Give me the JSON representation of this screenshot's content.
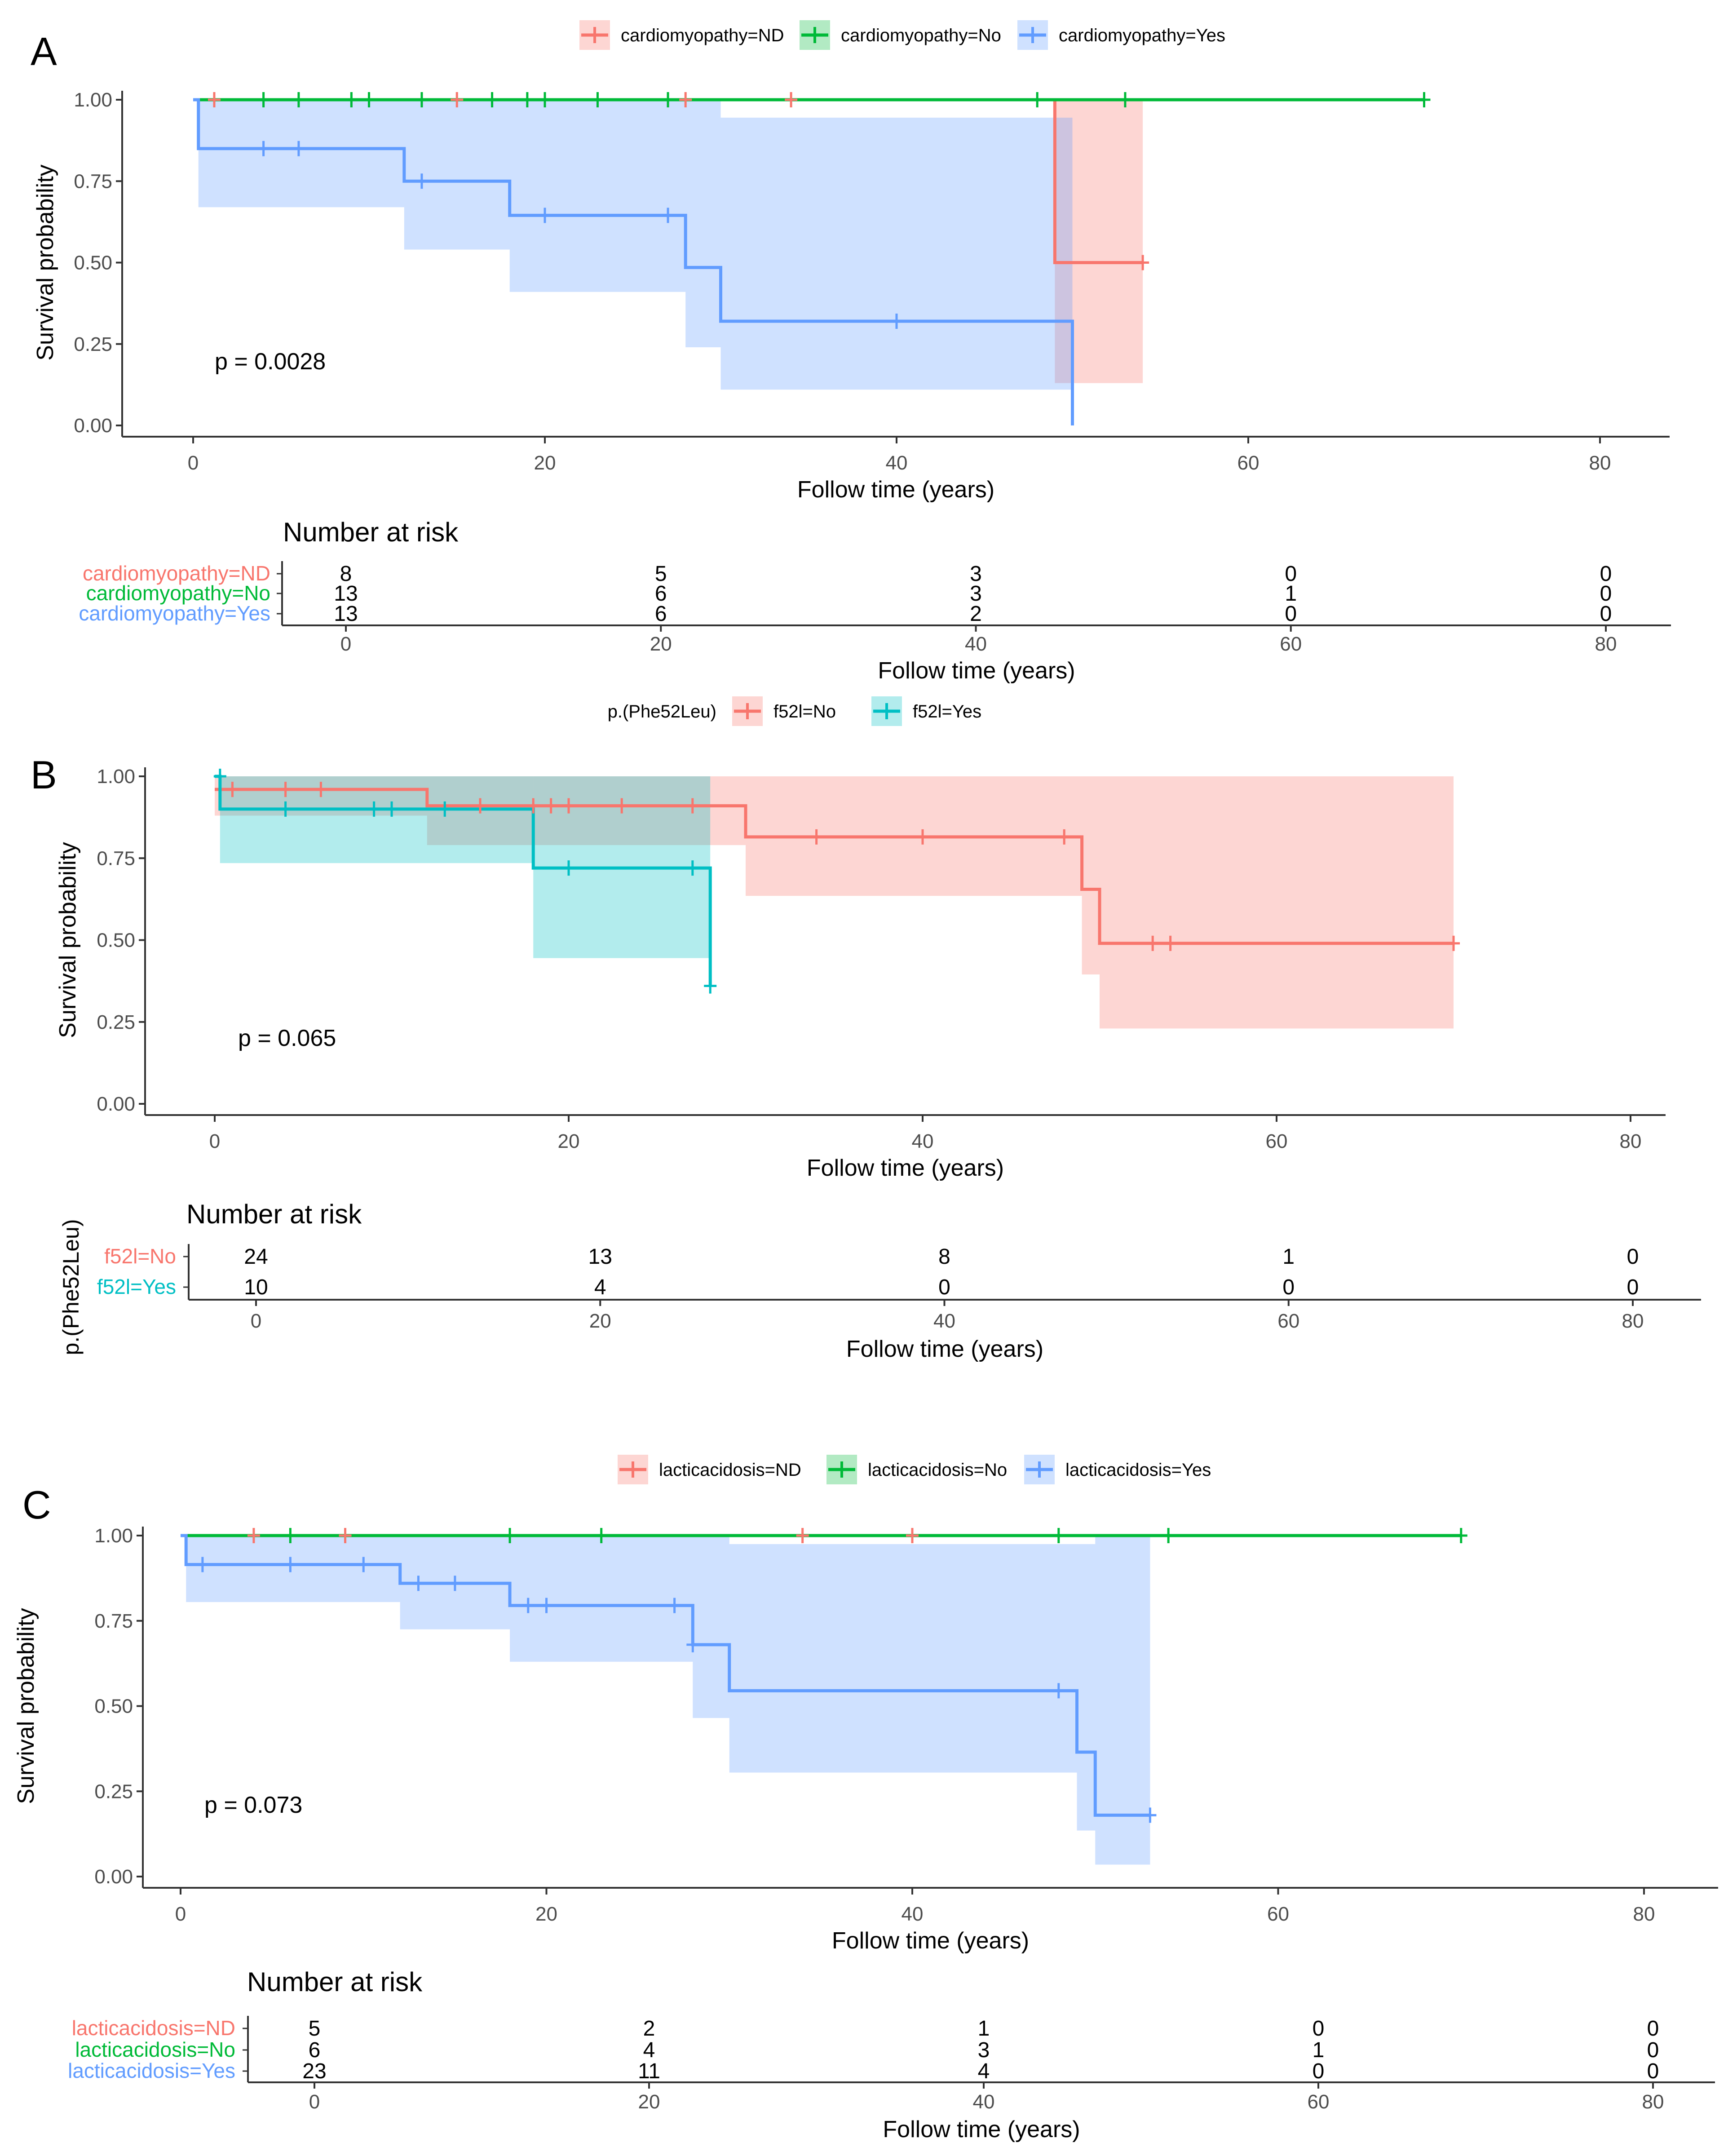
{
  "colors": {
    "ND": "#F8766D",
    "No": "#00BA38",
    "Yes": "#619CFF",
    "f52l_no": "#F8766D",
    "f52l_yes": "#00BFC4",
    "axis": "#333333",
    "text": "#000000"
  },
  "chart_data": [
    {
      "panel_label": "A",
      "type": "line",
      "chart_subtype": "kaplan-meier",
      "legend_title": "",
      "xlabel": "Follow time (years)",
      "ylabel": "Survival probability",
      "xlim": [
        0,
        80
      ],
      "ylim": [
        0,
        1
      ],
      "x_ticks": [
        "0",
        "20",
        "40",
        "60",
        "80"
      ],
      "y_ticks": [
        "0.00",
        "0.25",
        "0.50",
        "0.75",
        "1.00"
      ],
      "p_value_text": "p = 0.0028",
      "series": [
        {
          "name": "cardiomyopathy=ND",
          "color_key": "ND",
          "end_x": 54,
          "steps": [
            [
              0,
              1.0
            ],
            [
              49,
              0.5
            ]
          ],
          "ci": [
            [
              0,
              1,
              1
            ],
            [
              49,
              0.13,
              1.0
            ]
          ],
          "censor": [
            [
              1.2,
              1
            ],
            [
              15,
              1
            ],
            [
              28,
              1
            ],
            [
              34,
              1
            ],
            [
              54,
              0.5
            ]
          ]
        },
        {
          "name": "cardiomyopathy=No",
          "color_key": "No",
          "end_x": 70,
          "steps": [
            [
              0,
              1.0
            ]
          ],
          "ci": [],
          "censor": [
            [
              4,
              1
            ],
            [
              6,
              1
            ],
            [
              9,
              1
            ],
            [
              10,
              1
            ],
            [
              13,
              1
            ],
            [
              17,
              1
            ],
            [
              19,
              1
            ],
            [
              20,
              1
            ],
            [
              23,
              1
            ],
            [
              27,
              1
            ],
            [
              48,
              1
            ],
            [
              53,
              1
            ],
            [
              70,
              1
            ]
          ]
        },
        {
          "name": "cardiomyopathy=Yes",
          "color_key": "Yes",
          "end_x": 50,
          "steps": [
            [
              0,
              1.0
            ],
            [
              0.3,
              0.85
            ],
            [
              12,
              0.75
            ],
            [
              18,
              0.645
            ],
            [
              28,
              0.485
            ],
            [
              30,
              0.32
            ],
            [
              50,
              0.0
            ]
          ],
          "ci": [
            [
              0,
              1,
              1
            ],
            [
              0.3,
              0.67,
              1.0
            ],
            [
              12,
              0.54,
              1.0
            ],
            [
              18,
              0.41,
              1.0
            ],
            [
              28,
              0.24,
              1.0
            ],
            [
              30,
              0.11,
              0.945
            ]
          ],
          "censor": [
            [
              4,
              0.85
            ],
            [
              6,
              0.85
            ],
            [
              13,
              0.75
            ],
            [
              20,
              0.645
            ],
            [
              27,
              0.645
            ],
            [
              40,
              0.32
            ]
          ]
        }
      ],
      "risk_table": {
        "title": "Number at risk",
        "row_labels": [
          "cardiomyopathy=ND",
          "cardiomyopathy=No",
          "cardiomyopathy=Yes"
        ],
        "row_color_keys": [
          "ND",
          "No",
          "Yes"
        ],
        "rows": [
          [
            "8",
            "5",
            "3",
            "0",
            "0"
          ],
          [
            "13",
            "6",
            "3",
            "1",
            "0"
          ],
          [
            "13",
            "6",
            "2",
            "0",
            "0"
          ]
        ],
        "x_ticks": [
          "0",
          "20",
          "40",
          "60",
          "80"
        ],
        "xlabel": "Follow time (years)",
        "ylabel": ""
      }
    },
    {
      "panel_label": "B",
      "type": "line",
      "chart_subtype": "kaplan-meier",
      "legend_title": "p.(Phe52Leu)",
      "xlabel": "Follow time (years)",
      "ylabel": "Survival probability",
      "xlim": [
        0,
        80
      ],
      "ylim": [
        0,
        1
      ],
      "x_ticks": [
        "0",
        "20",
        "40",
        "60",
        "80"
      ],
      "y_ticks": [
        "0.00",
        "0.25",
        "0.50",
        "0.75",
        "1.00"
      ],
      "p_value_text": "p = 0.065",
      "series": [
        {
          "name": "f52l=No",
          "color_key": "f52l_no",
          "end_x": 70,
          "steps": [
            [
              0,
              0.96
            ],
            [
              12,
              0.91
            ],
            [
              30,
              0.815
            ],
            [
              49,
              0.655
            ],
            [
              50,
              0.49
            ]
          ],
          "ci": [
            [
              0,
              0.88,
              1.0
            ],
            [
              12,
              0.79,
              1.0
            ],
            [
              30,
              0.635,
              1.0
            ],
            [
              49,
              0.395,
              1.0
            ],
            [
              50,
              0.23,
              1.0
            ]
          ],
          "censor": [
            [
              1,
              0.96
            ],
            [
              4,
              0.96
            ],
            [
              6,
              0.96
            ],
            [
              15,
              0.91
            ],
            [
              18,
              0.91
            ],
            [
              19,
              0.91
            ],
            [
              20,
              0.91
            ],
            [
              23,
              0.91
            ],
            [
              27,
              0.91
            ],
            [
              34,
              0.815
            ],
            [
              40,
              0.815
            ],
            [
              48,
              0.815
            ],
            [
              53,
              0.49
            ],
            [
              54,
              0.49
            ],
            [
              70,
              0.49
            ]
          ]
        },
        {
          "name": "f52l=Yes",
          "color_key": "f52l_yes",
          "end_x": 28,
          "steps": [
            [
              0,
              1.0
            ],
            [
              0.3,
              0.9
            ],
            [
              18,
              0.72
            ],
            [
              28,
              0.36
            ]
          ],
          "ci": [
            [
              0,
              1.0,
              1.0
            ],
            [
              0.3,
              0.735,
              1.0
            ],
            [
              18,
              0.445,
              1.0
            ]
          ],
          "censor": [
            [
              0.3,
              1.0
            ],
            [
              4,
              0.9
            ],
            [
              9,
              0.9
            ],
            [
              10,
              0.9
            ],
            [
              13,
              0.9
            ],
            [
              20,
              0.72
            ],
            [
              27,
              0.72
            ],
            [
              28,
              0.36
            ]
          ]
        }
      ],
      "risk_table": {
        "title": "Number at risk",
        "row_labels": [
          "f52l=No",
          "f52l=Yes"
        ],
        "row_color_keys": [
          "f52l_no",
          "f52l_yes"
        ],
        "rows": [
          [
            "24",
            "13",
            "8",
            "1",
            "0"
          ],
          [
            "10",
            "4",
            "0",
            "0",
            "0"
          ]
        ],
        "x_ticks": [
          "0",
          "20",
          "40",
          "60",
          "80"
        ],
        "xlabel": "Follow time (years)",
        "ylabel": "p.(Phe52Leu)"
      }
    },
    {
      "panel_label": "C",
      "type": "line",
      "chart_subtype": "kaplan-meier",
      "legend_title": "",
      "xlabel": "Follow time (years)",
      "ylabel": "Survival probability",
      "xlim": [
        0,
        80
      ],
      "ylim": [
        0,
        1
      ],
      "x_ticks": [
        "0",
        "20",
        "40",
        "60",
        "80"
      ],
      "y_ticks": [
        "0.00",
        "0.25",
        "0.50",
        "0.75",
        "1.00"
      ],
      "p_value_text": "p = 0.073",
      "series": [
        {
          "name": "lacticacidosis=ND",
          "color_key": "ND",
          "end_x": 40,
          "steps": [
            [
              0,
              1.0
            ]
          ],
          "ci": [],
          "censor": [
            [
              4,
              1
            ],
            [
              9,
              1
            ],
            [
              34,
              1
            ],
            [
              40,
              1
            ]
          ]
        },
        {
          "name": "lacticacidosis=No",
          "color_key": "No",
          "end_x": 70,
          "steps": [
            [
              0,
              1.0
            ]
          ],
          "ci": [],
          "censor": [
            [
              6,
              1
            ],
            [
              18,
              1
            ],
            [
              23,
              1
            ],
            [
              48,
              1
            ],
            [
              54,
              1
            ],
            [
              70,
              1
            ]
          ]
        },
        {
          "name": "lacticacidosis=Yes",
          "color_key": "Yes",
          "end_x": 53,
          "steps": [
            [
              0,
              1.0
            ],
            [
              0.3,
              0.915
            ],
            [
              12,
              0.86
            ],
            [
              18,
              0.795
            ],
            [
              28,
              0.68
            ],
            [
              30,
              0.545
            ],
            [
              49,
              0.365
            ],
            [
              50,
              0.18
            ]
          ],
          "ci": [
            [
              0,
              1.0,
              1.0
            ],
            [
              0.3,
              0.805,
              1.0
            ],
            [
              12,
              0.725,
              1.0
            ],
            [
              18,
              0.63,
              1.0
            ],
            [
              28,
              0.465,
              1.0
            ],
            [
              30,
              0.305,
              0.975
            ],
            [
              49,
              0.135,
              0.975
            ],
            [
              50,
              0.035,
              1.0
            ]
          ],
          "censor": [
            [
              1.2,
              0.915
            ],
            [
              6,
              0.915
            ],
            [
              10,
              0.915
            ],
            [
              13,
              0.86
            ],
            [
              15,
              0.86
            ],
            [
              19,
              0.795
            ],
            [
              20,
              0.795
            ],
            [
              27,
              0.795
            ],
            [
              28,
              0.68
            ],
            [
              48,
              0.545
            ],
            [
              53,
              0.18
            ]
          ]
        }
      ],
      "risk_table": {
        "title": "Number at risk",
        "row_labels": [
          "lacticacidosis=ND",
          "lacticacidosis=No",
          "lacticacidosis=Yes"
        ],
        "row_color_keys": [
          "ND",
          "No",
          "Yes"
        ],
        "rows": [
          [
            "5",
            "2",
            "1",
            "0",
            "0"
          ],
          [
            "6",
            "4",
            "3",
            "1",
            "0"
          ],
          [
            "23",
            "11",
            "4",
            "0",
            "0"
          ]
        ],
        "x_ticks": [
          "0",
          "20",
          "40",
          "60",
          "80"
        ],
        "xlabel": "Follow time (years)",
        "ylabel": ""
      }
    }
  ]
}
